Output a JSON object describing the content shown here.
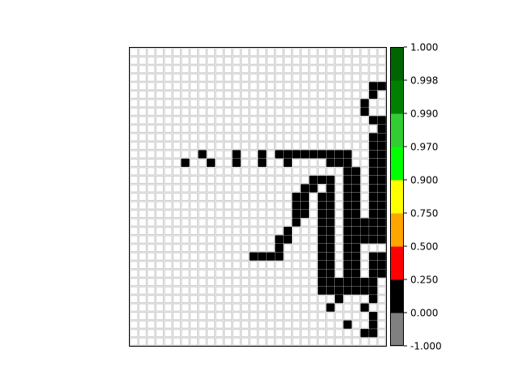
{
  "chart_data": {
    "type": "heatmap",
    "grid": {
      "rows": 35,
      "cols": 30,
      "gridlines": true
    },
    "empty_cell_color": "#ffffff",
    "gridline_color": "#d3d3d3",
    "filled_cells_value_range": [
      0.0,
      0.25
    ],
    "filled_cells": [
      [
        4,
        29
      ],
      [
        4,
        30
      ],
      [
        5,
        29
      ],
      [
        6,
        28
      ],
      [
        7,
        28
      ],
      [
        8,
        29
      ],
      [
        8,
        30
      ],
      [
        9,
        30
      ],
      [
        10,
        29
      ],
      [
        10,
        30
      ],
      [
        11,
        29
      ],
      [
        11,
        30
      ],
      [
        12,
        29
      ],
      [
        12,
        30
      ],
      [
        12,
        9
      ],
      [
        12,
        13
      ],
      [
        12,
        16
      ],
      [
        12,
        18
      ],
      [
        12,
        19
      ],
      [
        12,
        20
      ],
      [
        12,
        21
      ],
      [
        12,
        22
      ],
      [
        12,
        23
      ],
      [
        12,
        24
      ],
      [
        12,
        25
      ],
      [
        12,
        26
      ],
      [
        13,
        29
      ],
      [
        13,
        30
      ],
      [
        13,
        7
      ],
      [
        13,
        10
      ],
      [
        13,
        13
      ],
      [
        13,
        16
      ],
      [
        13,
        19
      ],
      [
        13,
        24
      ],
      [
        13,
        25
      ],
      [
        13,
        26
      ],
      [
        14,
        29
      ],
      [
        14,
        30
      ],
      [
        14,
        26
      ],
      [
        14,
        27
      ],
      [
        15,
        29
      ],
      [
        15,
        30
      ],
      [
        15,
        22
      ],
      [
        15,
        23
      ],
      [
        15,
        24
      ],
      [
        15,
        26
      ],
      [
        15,
        27
      ],
      [
        16,
        29
      ],
      [
        16,
        30
      ],
      [
        16,
        21
      ],
      [
        16,
        22
      ],
      [
        16,
        24
      ],
      [
        16,
        26
      ],
      [
        16,
        27
      ],
      [
        17,
        29
      ],
      [
        17,
        30
      ],
      [
        17,
        20
      ],
      [
        17,
        21
      ],
      [
        17,
        23
      ],
      [
        17,
        24
      ],
      [
        17,
        26
      ],
      [
        17,
        27
      ],
      [
        18,
        29
      ],
      [
        18,
        30
      ],
      [
        18,
        20
      ],
      [
        18,
        21
      ],
      [
        18,
        23
      ],
      [
        18,
        24
      ],
      [
        18,
        26
      ],
      [
        18,
        27
      ],
      [
        19,
        29
      ],
      [
        19,
        30
      ],
      [
        19,
        20
      ],
      [
        19,
        21
      ],
      [
        19,
        23
      ],
      [
        19,
        24
      ],
      [
        19,
        26
      ],
      [
        19,
        27
      ],
      [
        20,
        28
      ],
      [
        20,
        29
      ],
      [
        20,
        30
      ],
      [
        20,
        20
      ],
      [
        20,
        23
      ],
      [
        20,
        24
      ],
      [
        20,
        26
      ],
      [
        20,
        27
      ],
      [
        21,
        27
      ],
      [
        21,
        28
      ],
      [
        21,
        29
      ],
      [
        21,
        30
      ],
      [
        21,
        19
      ],
      [
        21,
        23
      ],
      [
        21,
        24
      ],
      [
        21,
        26
      ],
      [
        22,
        26
      ],
      [
        22,
        27
      ],
      [
        22,
        28
      ],
      [
        22,
        29
      ],
      [
        22,
        30
      ],
      [
        22,
        18
      ],
      [
        22,
        19
      ],
      [
        22,
        23
      ],
      [
        22,
        24
      ],
      [
        22,
        26
      ],
      [
        22,
        27
      ],
      [
        23,
        26
      ],
      [
        23,
        27
      ],
      [
        23,
        18
      ],
      [
        23,
        23
      ],
      [
        23,
        24
      ],
      [
        24,
        29
      ],
      [
        24,
        30
      ],
      [
        24,
        15
      ],
      [
        24,
        16
      ],
      [
        24,
        17
      ],
      [
        24,
        18
      ],
      [
        24,
        23
      ],
      [
        24,
        24
      ],
      [
        24,
        26
      ],
      [
        24,
        27
      ],
      [
        25,
        29
      ],
      [
        25,
        30
      ],
      [
        25,
        23
      ],
      [
        25,
        24
      ],
      [
        25,
        26
      ],
      [
        25,
        27
      ],
      [
        26,
        29
      ],
      [
        26,
        30
      ],
      [
        26,
        23
      ],
      [
        26,
        24
      ],
      [
        26,
        26
      ],
      [
        26,
        27
      ],
      [
        27,
        23
      ],
      [
        27,
        24
      ],
      [
        27,
        25
      ],
      [
        27,
        26
      ],
      [
        27,
        27
      ],
      [
        27,
        28
      ],
      [
        27,
        29
      ],
      [
        28,
        23
      ],
      [
        28,
        24
      ],
      [
        28,
        25
      ],
      [
        28,
        26
      ],
      [
        28,
        27
      ],
      [
        28,
        28
      ],
      [
        28,
        29
      ],
      [
        29,
        25
      ],
      [
        29,
        29
      ],
      [
        30,
        24
      ],
      [
        30,
        28
      ],
      [
        31,
        29
      ],
      [
        32,
        26
      ],
      [
        32,
        29
      ],
      [
        33,
        28
      ],
      [
        33,
        29
      ]
    ],
    "colorbar": {
      "ticks": [
        "-1.000",
        "0.000",
        "0.250",
        "0.500",
        "0.750",
        "0.900",
        "0.970",
        "0.990",
        "0.998",
        "1.000"
      ],
      "segments": [
        {
          "from": "-1.000",
          "to": "0.000",
          "color": "#808080"
        },
        {
          "from": "0.000",
          "to": "0.250",
          "color": "#000000"
        },
        {
          "from": "0.250",
          "to": "0.500",
          "color": "#ff0000"
        },
        {
          "from": "0.500",
          "to": "0.750",
          "color": "#ffa500"
        },
        {
          "from": "0.750",
          "to": "0.900",
          "color": "#ffff00"
        },
        {
          "from": "0.900",
          "to": "0.970",
          "color": "#00ff00"
        },
        {
          "from": "0.970",
          "to": "0.990",
          "color": "#32cd32"
        },
        {
          "from": "0.990",
          "to": "0.998",
          "color": "#008000"
        },
        {
          "from": "0.998",
          "to": "1.000",
          "color": "#006400"
        }
      ]
    }
  }
}
